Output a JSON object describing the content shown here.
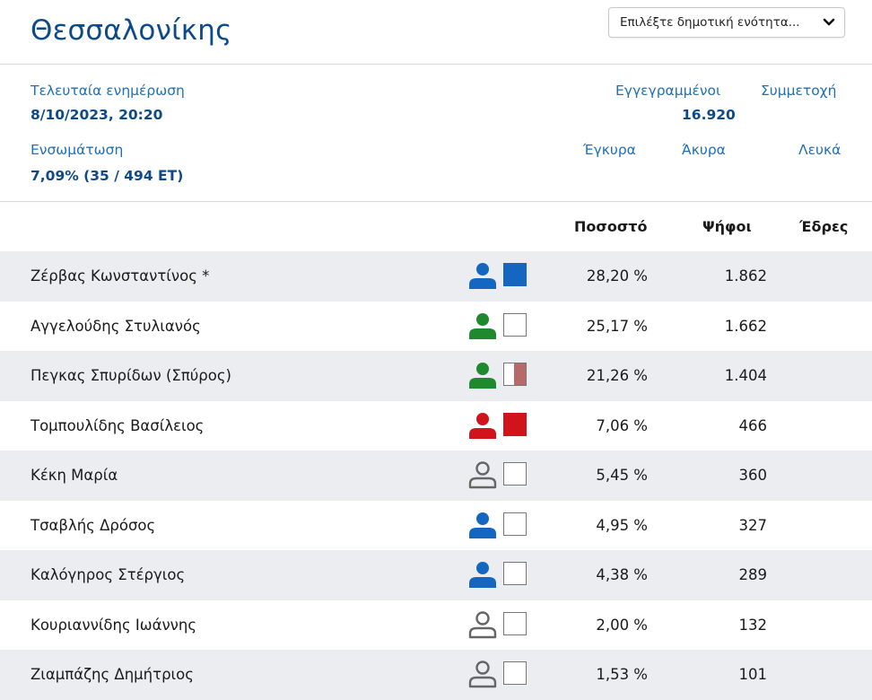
{
  "header": {
    "title": "Θεσσαλονίκης",
    "select_label": "Επιλέξτε δημοτική ενότητα..."
  },
  "info": {
    "last_update_label": "Τελευταία ενημέρωση",
    "last_update_value": "8/10/2023, 20:20",
    "integration_label": "Ενσωμάτωση",
    "integration_value": "7,09% (35 / 494 ΕΤ)",
    "registered_label": "Εγγεγραμμένοι",
    "registered_value": "16.920",
    "participation_label": "Συμμετοχή",
    "valid_label": "Έγκυρα",
    "invalid_label": "Άκυρα",
    "blank_label": "Λευκά"
  },
  "table": {
    "columns": [
      "Ποσοστό",
      "Ψήφοι",
      "Έδρες"
    ],
    "rows": [
      {
        "name": "Ζέρβας Κωνσταντίνος *",
        "pct": "28,20 %",
        "votes": "1.862",
        "person_color": "#1466c0",
        "person_style": "filled",
        "box_color": "#1466c0",
        "box_fill": 1.0
      },
      {
        "name": "Αγγελούδης Στυλιανός",
        "pct": "25,17 %",
        "votes": "1.662",
        "person_color": "#1f8a2d",
        "person_style": "filled",
        "box_color": "#ffffff",
        "box_fill": 0.0
      },
      {
        "name": "Πεγκας Σπυρίδων (Σπύρος)",
        "pct": "21,26 %",
        "votes": "1.404",
        "person_color": "#1f8a2d",
        "person_style": "filled",
        "box_color": "#b86a6a",
        "box_fill": 0.55
      },
      {
        "name": "Τομπουλίδης Βασίλειος",
        "pct": "7,06 %",
        "votes": "466",
        "person_color": "#d1141b",
        "person_style": "filled",
        "box_color": "#d1141b",
        "box_fill": 1.0
      },
      {
        "name": "Κέκη Μαρία",
        "pct": "5,45 %",
        "votes": "360",
        "person_color": "#666666",
        "person_style": "outline",
        "box_color": "#ffffff",
        "box_fill": 0.0
      },
      {
        "name": "Τσαβλής Δρόσος",
        "pct": "4,95 %",
        "votes": "327",
        "person_color": "#1466c0",
        "person_style": "filled",
        "box_color": "#ffffff",
        "box_fill": 0.0
      },
      {
        "name": "Καλόγηρος Στέργιος",
        "pct": "4,38 %",
        "votes": "289",
        "person_color": "#1466c0",
        "person_style": "filled",
        "box_color": "#ffffff",
        "box_fill": 0.0
      },
      {
        "name": "Κουριαννίδης Ιωάννης",
        "pct": "2,00 %",
        "votes": "132",
        "person_color": "#666666",
        "person_style": "outline",
        "box_color": "#ffffff",
        "box_fill": 0.0
      },
      {
        "name": "Ζιαμπάζης Δημήτριος",
        "pct": "1,53 %",
        "votes": "101",
        "person_color": "#666666",
        "person_style": "outline",
        "box_color": "#ffffff",
        "box_fill": 0.0
      }
    ]
  }
}
